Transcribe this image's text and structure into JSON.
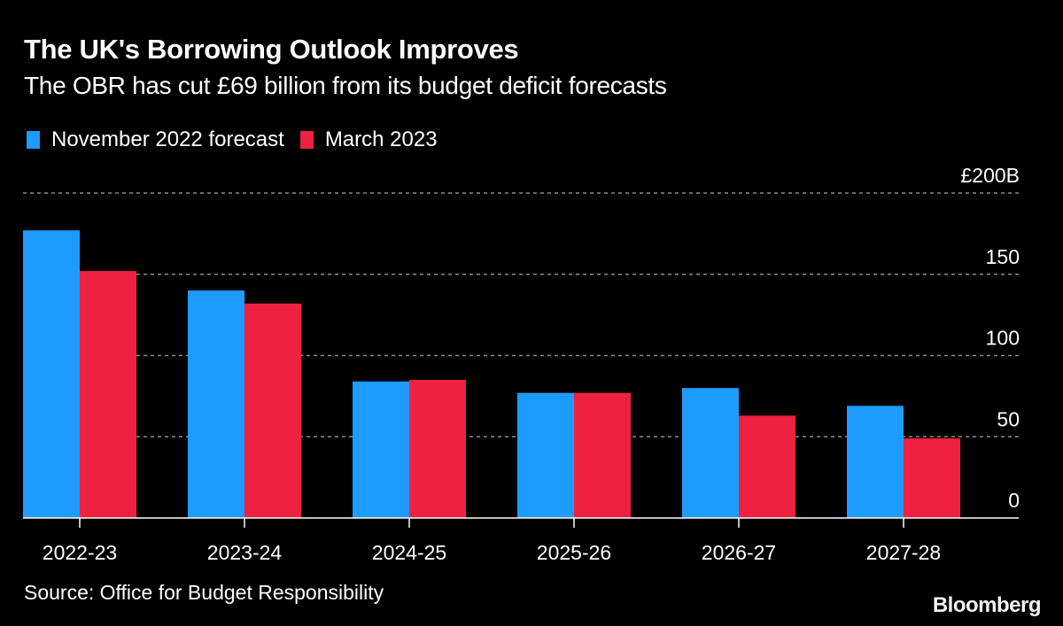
{
  "header": {
    "title": "The UK's Borrowing Outlook Improves",
    "subtitle": "The OBR has cut £69 billion from its budget deficit forecasts"
  },
  "legend": [
    {
      "label": "November 2022 forecast",
      "color": "#1e9bff"
    },
    {
      "label": "March 2023",
      "color": "#ee2140"
    }
  ],
  "footer": {
    "source": "Source: Office for Budget Responsibility",
    "brand": "Bloomberg"
  },
  "chart_data": {
    "type": "bar",
    "title": "The UK's Borrowing Outlook Improves",
    "subtitle": "The OBR has cut £69 billion from its budget deficit forecasts",
    "xlabel": "",
    "ylabel": "",
    "categories": [
      "2022-23",
      "2023-24",
      "2024-25",
      "2025-26",
      "2026-27",
      "2027-28"
    ],
    "series": [
      {
        "name": "November 2022 forecast",
        "color": "#1e9bff",
        "values": [
          177,
          140,
          84,
          77,
          80,
          69
        ]
      },
      {
        "name": "March 2023",
        "color": "#ee2140",
        "values": [
          152,
          132,
          85,
          77,
          63,
          49
        ]
      }
    ],
    "ylim": [
      0,
      200
    ],
    "yticks": [
      0,
      50,
      100,
      150,
      200
    ],
    "ytick_labels": [
      "0",
      "50",
      "100",
      "150",
      "£200B"
    ],
    "grid": true,
    "legend_position": "top-left",
    "yaxis_position": "right"
  }
}
